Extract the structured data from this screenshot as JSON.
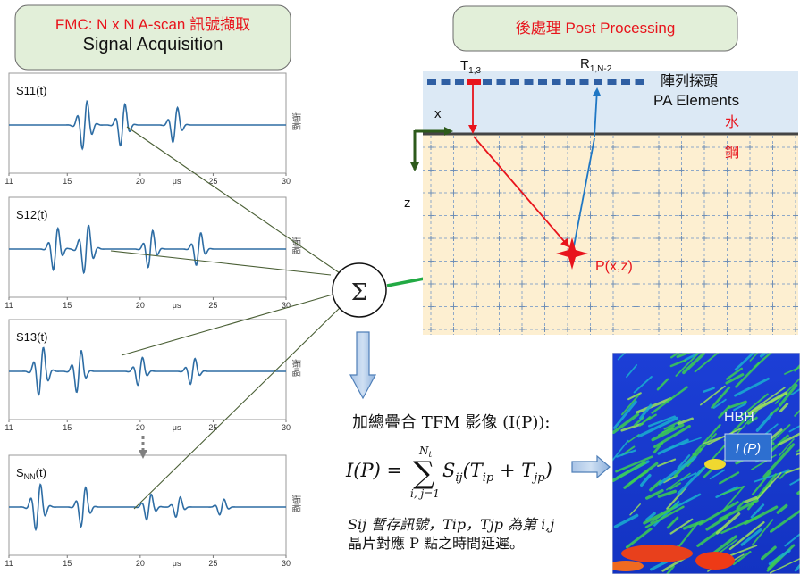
{
  "acquisition_box": {
    "line1": "FMC: N x N A-scan 訊號擷取",
    "line2": "Signal Acquisition"
  },
  "postprocess_box": {
    "label": "後處理 Post Processing"
  },
  "ascan_panels": [
    {
      "label": "S11(t)",
      "label_main": "S",
      "label_sub": "",
      "label_tail": "11(t)"
    },
    {
      "label": "S12(t)",
      "label_main": "S",
      "label_sub": "",
      "label_tail": "12(t)"
    },
    {
      "label": "S13(t)",
      "label_main": "S",
      "label_sub": "",
      "label_tail": "13(t)"
    },
    {
      "label": "SNN(t)",
      "label_main": "S",
      "label_sub": "NN",
      "label_tail": "(t)"
    }
  ],
  "ascan_axis": {
    "ticks": [
      "11",
      "15",
      "20",
      "25",
      "30"
    ],
    "unit": "μs",
    "y_label": "振幅"
  },
  "sum_symbol": "Σ",
  "array_probe": {
    "t_label_main": "T",
    "t_label_sub": "1,3",
    "r_label_main": "R",
    "r_label_sub": "1,N-2",
    "label_zh": "陣列探頭",
    "label_en": "PA Elements",
    "water": "水",
    "steel": "鋼",
    "axis_x": "x",
    "axis_z": "z",
    "point": "P(x,z)"
  },
  "formula": {
    "title": "加總疊合 TFM 影像 (I(P)):",
    "lhs": "I(P) =",
    "sum_top": "N",
    "sum_top_sub": "t",
    "sum_bottom": "i, j=1",
    "body": "S",
    "body_sub": "ij",
    "args": "(T",
    "t1_sub": "ip",
    "plus": " + T",
    "t2_sub": "jp",
    "close": ")"
  },
  "note": {
    "line1": "Sij 暫存訊號，Tip，Tjp 為第 i,j",
    "line2": "晶片對應 P 點之時間延遲。"
  },
  "tfm_image": {
    "label_hbh": "HBH",
    "label_ip": "I (P)"
  },
  "colors": {
    "box_fill": "#e2efd9",
    "panel_line": "#2e6da4",
    "arrow_green": "#22aa44",
    "arrow_red": "#e8141c",
    "arrow_blue": "#1f77c4",
    "grid_fill": "#fdefd1",
    "water_fill": "#dce9f5"
  }
}
